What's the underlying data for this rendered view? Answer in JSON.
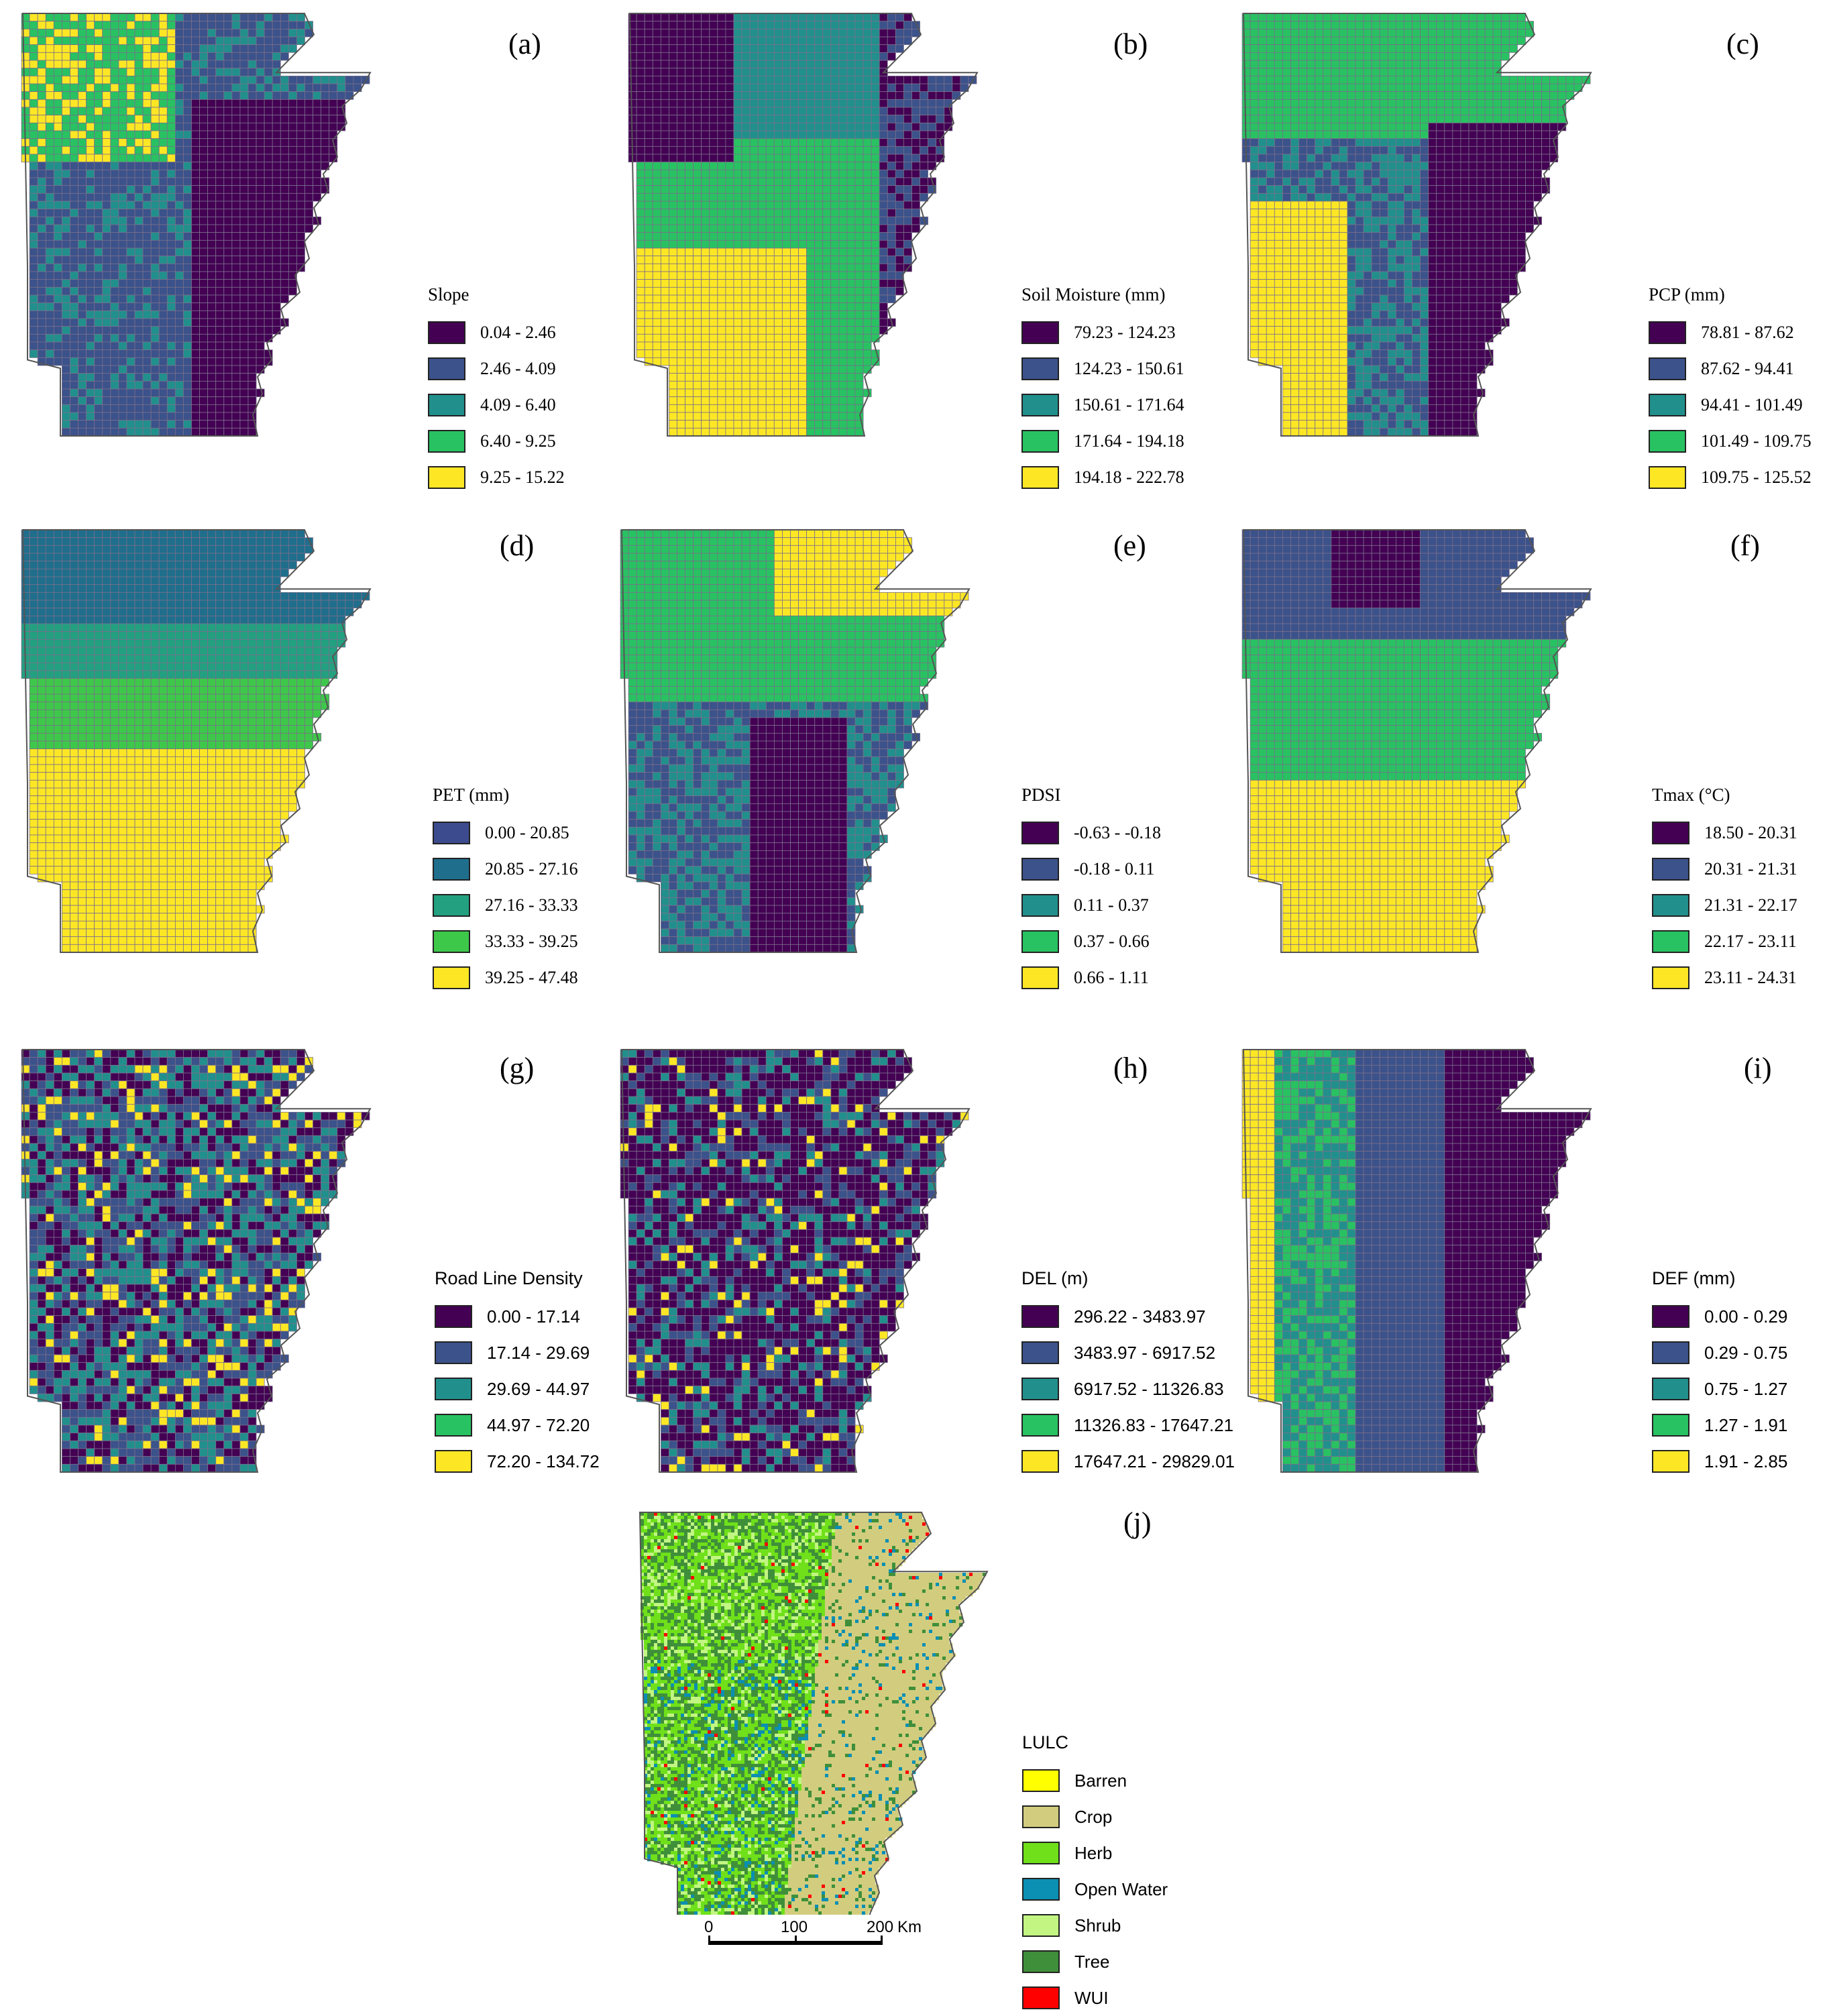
{
  "panels": [
    {
      "label": "(a)",
      "legend_title": "Slope",
      "classes": [
        "0.04 - 2.46",
        "2.46 - 4.09",
        "4.09 - 6.40",
        "6.40 - 9.25",
        "9.25 - 15.22"
      ],
      "colors": [
        "#440154",
        "#3b528b",
        "#21908d",
        "#28c262",
        "#fde725"
      ]
    },
    {
      "label": "(b)",
      "legend_title": "Soil Moisture (mm)",
      "classes": [
        "79.23 - 124.23",
        "124.23 - 150.61",
        "150.61 - 171.64",
        "171.64 - 194.18",
        "194.18 - 222.78"
      ],
      "colors": [
        "#440154",
        "#3b528b",
        "#21908d",
        "#28c262",
        "#fde725"
      ]
    },
    {
      "label": "(c)",
      "legend_title": "PCP (mm)",
      "classes": [
        "78.81 - 87.62",
        "87.62 - 94.41",
        "94.41 - 101.49",
        "101.49 - 109.75",
        "109.75 - 125.52"
      ],
      "colors": [
        "#440154",
        "#3b528b",
        "#21908d",
        "#28c262",
        "#fde725"
      ]
    },
    {
      "label": "(d)",
      "legend_title": "PET (mm)",
      "classes": [
        "0.00 - 20.85",
        "20.85 - 27.16",
        "27.16 - 33.33",
        "33.33 - 39.25",
        "39.25 - 47.48"
      ],
      "colors": [
        "#3c4a8e",
        "#1f6e8c",
        "#22a080",
        "#3ec84a",
        "#fde725"
      ]
    },
    {
      "label": "(e)",
      "legend_title": "PDSI",
      "classes": [
        "-0.63 - -0.18",
        "-0.18 - 0.11",
        "0.11 - 0.37",
        "0.37 - 0.66",
        "0.66 - 1.11"
      ],
      "colors": [
        "#440154",
        "#3b528b",
        "#21908d",
        "#28c262",
        "#fde725"
      ]
    },
    {
      "label": "(f)",
      "legend_title": "Tmax (°C)",
      "classes": [
        "18.50 - 20.31",
        "20.31 - 21.31",
        "21.31 - 22.17",
        "22.17 - 23.11",
        "23.11 - 24.31"
      ],
      "colors": [
        "#440154",
        "#3b528b",
        "#21908d",
        "#28c262",
        "#fde725"
      ]
    },
    {
      "label": "(g)",
      "legend_title": "Road Line Density",
      "classes": [
        "0.00 - 17.14",
        "17.14 - 29.69",
        "29.69 - 44.97",
        "44.97 - 72.20",
        "72.20 - 134.72"
      ],
      "colors": [
        "#440154",
        "#3b528b",
        "#21908d",
        "#28c262",
        "#fde725"
      ]
    },
    {
      "label": "(h)",
      "legend_title": "DEL (m)",
      "classes": [
        "296.22 - 3483.97",
        "3483.97 - 6917.52",
        "6917.52 - 11326.83",
        "11326.83 - 17647.21",
        "17647.21 - 29829.01"
      ],
      "colors": [
        "#440154",
        "#3b528b",
        "#21908d",
        "#28c262",
        "#fde725"
      ]
    },
    {
      "label": "(i)",
      "legend_title": "DEF (mm)",
      "classes": [
        "0.00 - 0.29",
        "0.29 - 0.75",
        "0.75 - 1.27",
        "1.27 - 1.91",
        "1.91 - 2.85"
      ],
      "colors": [
        "#440154",
        "#3b528b",
        "#21908d",
        "#28c262",
        "#fde725"
      ]
    },
    {
      "label": "(j)",
      "legend_title": "LULC",
      "classes": [
        "Barren",
        "Crop",
        "Herb",
        "Open Water",
        "Shrub",
        "Tree",
        "WUI"
      ],
      "colors": [
        "#ffff00",
        "#d2cd7e",
        "#6fe01a",
        "#0b8fb3",
        "#c2f582",
        "#3f8f3a",
        "#ff0000"
      ]
    }
  ],
  "scalebar": {
    "ticks": [
      "0",
      "100",
      "200"
    ],
    "unit": "Km"
  }
}
